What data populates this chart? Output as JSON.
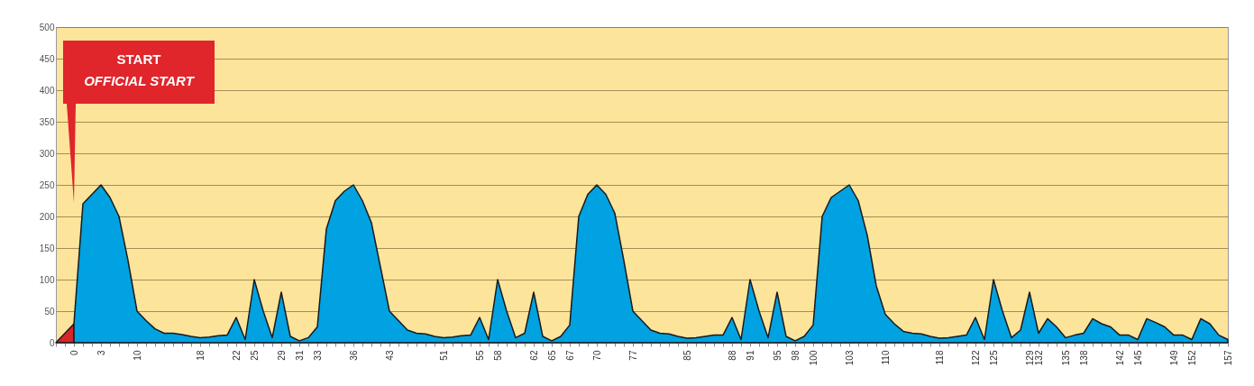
{
  "chart_data": {
    "type": "area",
    "categories": [
      null,
      null,
      "0",
      null,
      null,
      "3",
      null,
      null,
      null,
      "10",
      null,
      null,
      null,
      null,
      null,
      null,
      "18",
      null,
      null,
      null,
      "22",
      null,
      "25",
      null,
      null,
      "29",
      null,
      "31",
      null,
      "33",
      null,
      null,
      null,
      "36",
      null,
      null,
      null,
      "43",
      null,
      null,
      null,
      null,
      null,
      "51",
      null,
      null,
      null,
      "55",
      null,
      "58",
      null,
      null,
      null,
      "62",
      null,
      "65",
      null,
      "67",
      null,
      null,
      "70",
      null,
      null,
      null,
      "77",
      null,
      null,
      null,
      null,
      null,
      "85",
      null,
      null,
      null,
      null,
      "88",
      null,
      "91",
      null,
      null,
      "95",
      null,
      "98",
      null,
      "100",
      null,
      null,
      null,
      "103",
      null,
      null,
      null,
      "110",
      null,
      null,
      null,
      null,
      null,
      "118",
      null,
      null,
      null,
      "122",
      null,
      "125",
      null,
      null,
      null,
      "129",
      "132",
      null,
      null,
      "135",
      null,
      "138",
      null,
      null,
      null,
      "142",
      null,
      "145",
      null,
      null,
      null,
      "149",
      null,
      "152",
      null,
      null,
      null,
      "157"
    ],
    "series": [
      {
        "color": "#d7262b",
        "values": [
          0,
          15,
          30,
          null,
          null,
          null,
          null,
          null,
          null,
          null,
          null,
          null,
          null,
          null,
          null,
          null,
          null,
          null,
          null,
          null,
          null,
          null,
          null,
          null,
          null,
          null,
          null,
          null,
          null,
          null,
          null,
          null,
          null,
          null,
          null,
          null,
          null,
          null,
          null,
          null,
          null,
          null,
          null,
          null,
          null,
          null,
          null,
          null,
          null,
          null,
          null,
          null,
          null,
          null,
          null,
          null,
          null,
          null,
          null,
          null,
          null,
          null,
          null,
          null,
          null,
          null,
          null,
          null,
          null,
          null,
          null,
          null,
          null,
          null,
          null,
          null,
          null,
          null,
          null,
          null,
          null,
          null,
          null,
          null,
          null,
          null,
          null,
          null,
          null,
          null,
          null,
          null,
          null,
          null,
          null,
          null,
          null,
          null,
          null,
          null,
          null,
          null,
          null,
          null,
          null,
          null,
          null,
          null,
          null,
          null,
          null,
          null,
          null,
          null,
          null,
          null,
          null,
          null,
          null,
          null,
          null,
          null,
          null,
          null,
          null,
          null,
          null,
          null,
          null,
          null,
          null
        ]
      },
      {
        "color": "#00a2e2",
        "values": [
          null,
          null,
          30,
          220,
          235,
          250,
          230,
          200,
          130,
          50,
          35,
          22,
          15,
          15,
          13,
          10,
          8,
          9,
          11,
          12,
          40,
          5,
          100,
          50,
          8,
          80,
          10,
          3,
          8,
          25,
          180,
          225,
          240,
          250,
          225,
          190,
          120,
          50,
          35,
          20,
          15,
          14,
          10,
          8,
          9,
          11,
          12,
          40,
          5,
          100,
          50,
          8,
          15,
          80,
          10,
          3,
          10,
          28,
          200,
          235,
          250,
          235,
          205,
          130,
          50,
          35,
          20,
          15,
          14,
          10,
          7,
          8,
          10,
          12,
          12,
          40,
          5,
          100,
          50,
          8,
          80,
          10,
          3,
          10,
          28,
          200,
          230,
          240,
          250,
          225,
          170,
          90,
          45,
          30,
          18,
          15,
          14,
          10,
          7,
          8,
          10,
          12,
          40,
          5,
          100,
          50,
          8,
          20,
          80,
          15,
          38,
          25,
          8,
          12,
          15,
          38,
          30,
          25,
          12,
          12,
          5,
          38,
          32,
          25,
          12,
          12,
          5,
          38,
          30,
          12,
          5
        ]
      }
    ],
    "ylim": [
      0,
      500
    ],
    "yticks": [
      0,
      50,
      100,
      150,
      200,
      250,
      300,
      350,
      400,
      450,
      500
    ],
    "grid": "y",
    "annotations": [
      "START",
      "OFFICIAL START"
    ]
  }
}
